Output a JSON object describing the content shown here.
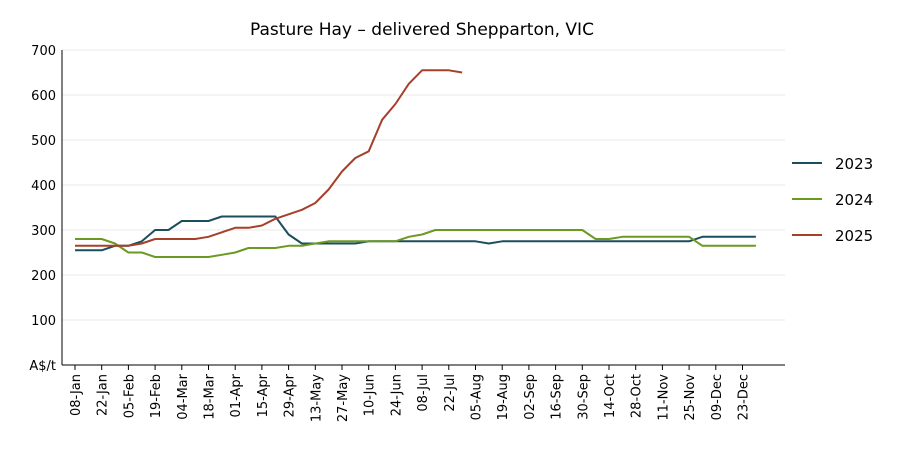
{
  "chart_data": {
    "type": "line",
    "title": "Pasture Hay – delivered Shepparton, VIC",
    "ylabel": "A$/t",
    "ylim": [
      0,
      700
    ],
    "yticks": [
      "100",
      "200",
      "300",
      "400",
      "500",
      "600",
      "700"
    ],
    "grid": true,
    "legend_position": "right",
    "x_ticks": [
      "08-Jan",
      "22-Jan",
      "05-Feb",
      "19-Feb",
      "04-Mar",
      "18-Mar",
      "01-Apr",
      "15-Apr",
      "29-Apr",
      "13-May",
      "27-May",
      "10-Jun",
      "24-Jun",
      "08-Jul",
      "22-Jul",
      "05-Aug",
      "19-Aug",
      "02-Sep",
      "16-Sep",
      "30-Sep",
      "14-Oct",
      "28-Oct",
      "11-Nov",
      "25-Nov",
      "09-Dec",
      "23-Dec"
    ],
    "x": [
      "01-Jan",
      "08-Jan",
      "15-Jan",
      "22-Jan",
      "29-Jan",
      "05-Feb",
      "12-Feb",
      "19-Feb",
      "26-Feb",
      "04-Mar",
      "11-Mar",
      "18-Mar",
      "25-Mar",
      "01-Apr",
      "08-Apr",
      "15-Apr",
      "22-Apr",
      "29-Apr",
      "06-May",
      "13-May",
      "20-May",
      "27-May",
      "03-Jun",
      "10-Jun",
      "17-Jun",
      "24-Jun",
      "01-Jul",
      "08-Jul",
      "15-Jul",
      "22-Jul",
      "29-Jul",
      "05-Aug",
      "12-Aug",
      "19-Aug",
      "26-Aug",
      "02-Sep",
      "09-Sep",
      "16-Sep",
      "23-Sep",
      "30-Sep",
      "07-Oct",
      "14-Oct",
      "21-Oct",
      "28-Oct",
      "04-Nov",
      "11-Nov",
      "18-Nov",
      "25-Nov",
      "02-Dec",
      "09-Dec",
      "16-Dec",
      "23-Dec",
      "30-Dec"
    ],
    "series": [
      {
        "name": "2023",
        "color": "#1b4f5c",
        "values": [
          null,
          255,
          255,
          255,
          265,
          265,
          275,
          300,
          300,
          320,
          320,
          320,
          330,
          330,
          330,
          330,
          330,
          290,
          270,
          270,
          270,
          270,
          270,
          275,
          275,
          275,
          275,
          275,
          275,
          275,
          275,
          275,
          270,
          275,
          275,
          275,
          275,
          275,
          275,
          275,
          275,
          275,
          275,
          275,
          275,
          275,
          275,
          275,
          285,
          285,
          285,
          285,
          285
        ]
      },
      {
        "name": "2024",
        "color": "#6b9a22",
        "values": [
          null,
          280,
          280,
          280,
          270,
          250,
          250,
          240,
          240,
          240,
          240,
          240,
          245,
          250,
          260,
          260,
          260,
          265,
          265,
          270,
          275,
          275,
          275,
          275,
          275,
          275,
          285,
          290,
          300,
          300,
          300,
          300,
          300,
          300,
          300,
          300,
          300,
          300,
          300,
          300,
          280,
          280,
          285,
          285,
          285,
          285,
          285,
          285,
          265,
          265,
          265,
          265,
          265
        ]
      },
      {
        "name": "2025",
        "color": "#a5402a",
        "values": [
          null,
          265,
          265,
          265,
          265,
          265,
          270,
          280,
          280,
          280,
          280,
          285,
          295,
          305,
          305,
          310,
          325,
          335,
          345,
          360,
          390,
          430,
          460,
          475,
          545,
          580,
          625,
          655,
          655,
          655,
          650,
          null,
          null,
          null,
          null,
          null,
          null,
          null,
          null,
          null,
          null,
          null,
          null,
          null,
          null,
          null,
          null,
          null,
          null,
          null,
          null,
          null,
          null
        ]
      }
    ]
  }
}
